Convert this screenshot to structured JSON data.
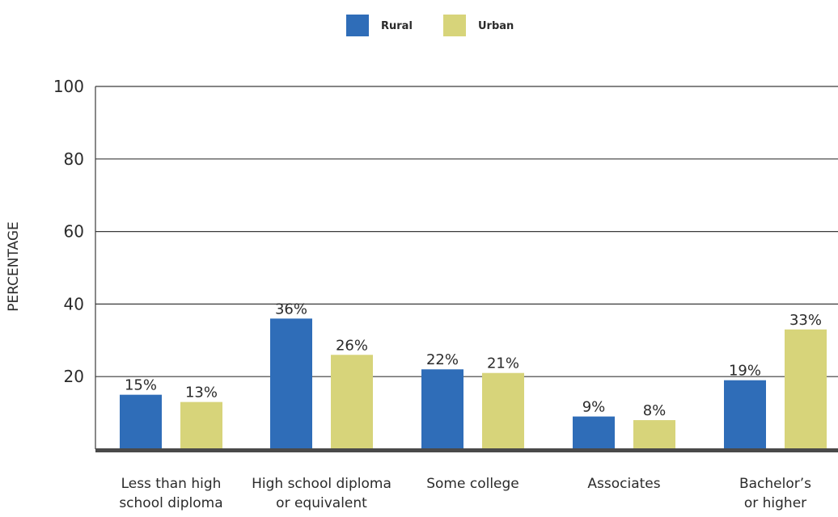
{
  "chart_data": {
    "type": "bar",
    "ylabel": "PERCENTAGE",
    "ylim": [
      0,
      100
    ],
    "yticks": [
      20,
      40,
      60,
      80,
      100
    ],
    "grid": true,
    "legend_position": "top-center",
    "categories": [
      [
        "Less than high",
        "school diploma"
      ],
      [
        "High school diploma",
        "or equivalent"
      ],
      [
        "Some college"
      ],
      [
        "Associates"
      ],
      [
        "Bachelor’s",
        "or higher"
      ]
    ],
    "series": [
      {
        "name": "Rural",
        "color": "#2f6db8",
        "values": [
          15,
          36,
          22,
          9,
          19
        ],
        "labels": [
          "15%",
          "36%",
          "22%",
          "9%",
          "19%"
        ]
      },
      {
        "name": "Urban",
        "color": "#d7d47a",
        "values": [
          13,
          26,
          21,
          8,
          33
        ],
        "labels": [
          "13%",
          "26%",
          "21%",
          "8%",
          "33%"
        ]
      }
    ]
  }
}
